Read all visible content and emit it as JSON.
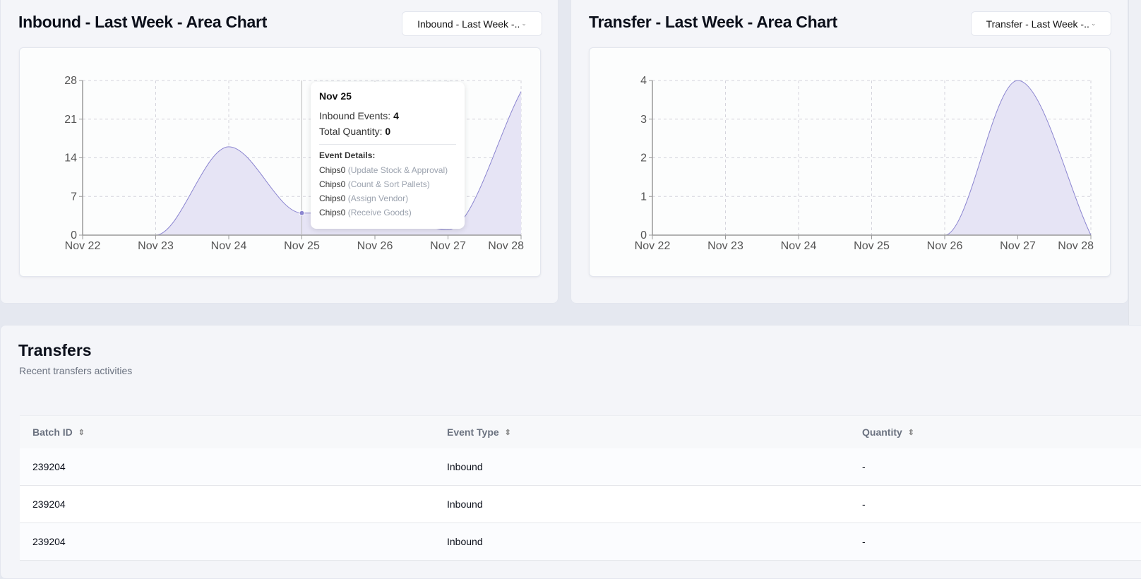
{
  "charts_panel": [
    {
      "title": "Inbound - Last Week - Area Chart",
      "select_value": "Inbound - Last Week -..",
      "tooltip": {
        "date": "Nov 25",
        "events_label": "Inbound Events:",
        "events_value": "4",
        "quantity_label": "Total Quantity:",
        "quantity_value": "0",
        "details_heading": "Event Details:",
        "details": [
          {
            "item": "Chips0",
            "action": "(Update Stock & Approval)"
          },
          {
            "item": "Chips0",
            "action": "(Count & Sort Pallets)"
          },
          {
            "item": "Chips0",
            "action": "(Assign Vendor)"
          },
          {
            "item": "Chips0",
            "action": "(Receive Goods)"
          }
        ]
      }
    },
    {
      "title": "Transfer - Last Week - Area Chart",
      "select_value": "Transfer - Last Week -.."
    }
  ],
  "chart_data": [
    {
      "type": "area",
      "categories": [
        "Nov 22",
        "Nov 23",
        "Nov 24",
        "Nov 25",
        "Nov 26",
        "Nov 27",
        "Nov 28"
      ],
      "values": [
        0,
        0,
        16,
        4,
        4,
        1,
        26
      ],
      "yticks": [
        0,
        7,
        14,
        21,
        28
      ],
      "ylim": [
        0,
        28
      ],
      "grid": true,
      "color": "#8b85d0",
      "fill": "#e6e4f5",
      "active_index": 3
    },
    {
      "type": "area",
      "categories": [
        "Nov 22",
        "Nov 23",
        "Nov 24",
        "Nov 25",
        "Nov 26",
        "Nov 27",
        "Nov 28"
      ],
      "values": [
        0,
        0,
        0,
        0,
        0,
        4,
        0
      ],
      "yticks": [
        0,
        1,
        2,
        3,
        4
      ],
      "ylim": [
        0,
        4
      ],
      "grid": true,
      "color": "#8b85d0",
      "fill": "#e6e4f5"
    }
  ],
  "transfers": {
    "title": "Transfers",
    "subtitle": "Recent transfers activities",
    "columns": [
      "Batch ID",
      "Event Type",
      "Quantity"
    ],
    "rows": [
      [
        "239204",
        "Inbound",
        "-"
      ],
      [
        "239204",
        "Inbound",
        "-"
      ],
      [
        "239204",
        "Inbound",
        "-"
      ]
    ]
  }
}
